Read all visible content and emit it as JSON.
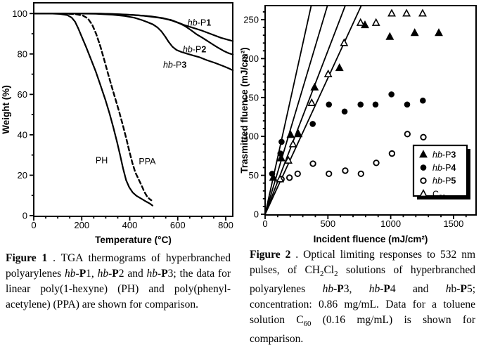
{
  "colors": {
    "ink": "#000000",
    "paper": "#ffffff"
  },
  "figure1": {
    "caption": [
      {
        "t": "Figure 1",
        "b": true
      },
      {
        "t": " . TGA thermograms of hyperbranched polyarylenes "
      },
      {
        "t": "hb",
        "i": true
      },
      {
        "t": "-"
      },
      {
        "t": "P",
        "b": true
      },
      {
        "t": "1, "
      },
      {
        "t": "hb",
        "i": true
      },
      {
        "t": "-"
      },
      {
        "t": "P",
        "b": true
      },
      {
        "t": "2 and "
      },
      {
        "t": "hb",
        "i": true
      },
      {
        "t": "-"
      },
      {
        "t": "P",
        "b": true
      },
      {
        "t": "3; the data for linear poly(1-hexyne) (PH) and poly(phenyl-acetylene) (PPA) are shown for comparison."
      }
    ]
  },
  "figure2": {
    "caption": [
      {
        "t": "Figure 2",
        "b": true
      },
      {
        "t": " . Optical limiting responses to 532 nm pulses, of CH"
      },
      {
        "t": "2",
        "sub": true
      },
      {
        "t": "Cl"
      },
      {
        "t": "2",
        "sub": true
      },
      {
        "t": " solutions of hyperbranched polyarylenes "
      },
      {
        "t": "hb",
        "i": true
      },
      {
        "t": "-"
      },
      {
        "t": "P",
        "b": true
      },
      {
        "t": "3, "
      },
      {
        "t": "hb",
        "i": true
      },
      {
        "t": "-"
      },
      {
        "t": "P",
        "b": true
      },
      {
        "t": "4 and "
      },
      {
        "t": "h",
        "i": true
      },
      {
        "t": "b-"
      },
      {
        "t": "P",
        "b": true
      },
      {
        "t": "5; concentration: 0.86 mg/mL. Data for a toluene solution C"
      },
      {
        "t": "60",
        "sub": true
      },
      {
        "t": " (0.16 mg/mL) is shown for comparison."
      }
    ]
  },
  "chart_data": [
    {
      "type": "line",
      "title": "",
      "xlabel": "Temperature (°C)",
      "ylabel": "Weight (%)",
      "xlim": [
        0,
        830
      ],
      "ylim": [
        0,
        105.3
      ],
      "xticks": [
        0,
        200,
        400,
        600,
        800
      ],
      "yticks": [
        0,
        20,
        40,
        60,
        80,
        100
      ],
      "x_minor_step": 50,
      "y_minor_step": 10,
      "grid": false,
      "series": [
        {
          "name": "hb-P1",
          "style": "solid",
          "label": {
            "parts": [
              {
                "t": "hb",
                "i": true
              },
              {
                "t": "-P"
              },
              {
                "t": "1",
                "b": true
              }
            ],
            "x": 690,
            "y": 95.5
          },
          "points": [
            [
              0,
              100
            ],
            [
              120,
              100
            ],
            [
              240,
              100
            ],
            [
              330,
              99.8
            ],
            [
              400,
              99.4
            ],
            [
              460,
              98.9
            ],
            [
              520,
              98
            ],
            [
              570,
              96.9
            ],
            [
              600,
              95.6
            ],
            [
              625,
              94.4
            ],
            [
              660,
              93.1
            ],
            [
              700,
              91.6
            ],
            [
              740,
              89.8
            ],
            [
              780,
              88
            ],
            [
              810,
              87
            ],
            [
              830,
              86.4
            ]
          ]
        },
        {
          "name": "hb-P2",
          "style": "solid",
          "label": {
            "parts": [
              {
                "t": "hb",
                "i": true
              },
              {
                "t": "-P"
              },
              {
                "t": "2",
                "b": true
              }
            ],
            "x": 670,
            "y": 82.3
          },
          "points": [
            [
              0,
              100
            ],
            [
              150,
              100
            ],
            [
              280,
              100
            ],
            [
              360,
              99.6
            ],
            [
              430,
              99.2
            ],
            [
              490,
              98.6
            ],
            [
              540,
              97.7
            ],
            [
              580,
              96.4
            ],
            [
              610,
              95
            ],
            [
              630,
              93.8
            ],
            [
              655,
              91.8
            ],
            [
              680,
              89.6
            ],
            [
              700,
              88.2
            ],
            [
              722,
              86.6
            ],
            [
              745,
              84.8
            ],
            [
              765,
              83.3
            ],
            [
              790,
              81.6
            ],
            [
              812,
              80.4
            ],
            [
              830,
              79.7
            ]
          ]
        },
        {
          "name": "hb-P3",
          "style": "solid",
          "label": {
            "parts": [
              {
                "t": "hb",
                "i": true
              },
              {
                "t": "-P"
              },
              {
                "t": "3",
                "b": true
              }
            ],
            "x": 588,
            "y": 74.8
          },
          "points": [
            [
              0,
              100
            ],
            [
              150,
              100
            ],
            [
              260,
              99.9
            ],
            [
              330,
              99.4
            ],
            [
              380,
              98.8
            ],
            [
              420,
              97.9
            ],
            [
              450,
              96.8
            ],
            [
              475,
              95.7
            ],
            [
              497,
              94.6
            ],
            [
              515,
              93.2
            ],
            [
              532,
              91.2
            ],
            [
              548,
              88.6
            ],
            [
              562,
              86
            ],
            [
              578,
              83.6
            ],
            [
              595,
              82
            ],
            [
              615,
              81
            ],
            [
              640,
              80.1
            ],
            [
              665,
              79.2
            ],
            [
              690,
              78.4
            ],
            [
              720,
              77
            ],
            [
              755,
              75.6
            ],
            [
              790,
              74
            ],
            [
              812,
              72.9
            ],
            [
              830,
              71.9
            ]
          ]
        },
        {
          "name": "PH",
          "style": "solid",
          "label": {
            "parts": [
              {
                "t": "PH"
              }
            ],
            "x": 283,
            "y": 27.5
          },
          "points": [
            [
              0,
              100
            ],
            [
              70,
              100
            ],
            [
              110,
              99.8
            ],
            [
              140,
              99.2
            ],
            [
              158,
              98
            ],
            [
              172,
              96
            ],
            [
              185,
              92.8
            ],
            [
              200,
              88.5
            ],
            [
              218,
              83.5
            ],
            [
              238,
              77.5
            ],
            [
              258,
              71.5
            ],
            [
              278,
              64.5
            ],
            [
              298,
              57.5
            ],
            [
              316,
              50.5
            ],
            [
              332,
              43.5
            ],
            [
              347,
              36.5
            ],
            [
              360,
              30
            ],
            [
              372,
              23.5
            ],
            [
              385,
              17.5
            ],
            [
              398,
              14
            ],
            [
              412,
              11.5
            ],
            [
              428,
              9.8
            ],
            [
              448,
              8.4
            ],
            [
              468,
              7
            ],
            [
              483,
              6
            ],
            [
              495,
              5
            ]
          ]
        },
        {
          "name": "PPA",
          "style": "dashed",
          "label": {
            "parts": [
              {
                "t": "PPA"
              }
            ],
            "x": 473,
            "y": 27
          },
          "points": [
            [
              0,
              100
            ],
            [
              130,
              100
            ],
            [
              175,
              99.7
            ],
            [
              205,
              99
            ],
            [
              225,
              97.6
            ],
            [
              243,
              94.6
            ],
            [
              260,
              90
            ],
            [
              277,
              84
            ],
            [
              294,
              77
            ],
            [
              310,
              70
            ],
            [
              326,
              63.5
            ],
            [
              342,
              57
            ],
            [
              357,
              51
            ],
            [
              372,
              44.5
            ],
            [
              386,
              38
            ],
            [
              399,
              31.5
            ],
            [
              411,
              26
            ],
            [
              423,
              21.5
            ],
            [
              436,
              18.2
            ],
            [
              449,
              15
            ],
            [
              461,
              11.8
            ],
            [
              473,
              9.3
            ],
            [
              483,
              8.2
            ],
            [
              490,
              7.6
            ]
          ]
        }
      ]
    },
    {
      "type": "scatter",
      "title": "",
      "xlabel": "Incident fluence (mJ/cm²)",
      "ylabel": "Trasmitted fluence (mJ/cm²)",
      "xlim": [
        0,
        1680
      ],
      "ylim": [
        0,
        268
      ],
      "xticks": [
        0,
        500,
        1000,
        1500
      ],
      "yticks": [
        0,
        50,
        100,
        150,
        200,
        250
      ],
      "x_minor_step": 100,
      "y_minor_step": 10,
      "grid": false,
      "reference_line_slopes": [
        0.73,
        0.54,
        0.42,
        0.35
      ],
      "series": [
        {
          "name": "hb-P3",
          "marker": "triangle-filled",
          "points": [
            [
              65,
              47
            ],
            [
              128,
              72
            ],
            [
              203,
              102
            ],
            [
              265,
              103
            ],
            [
              394,
              163
            ],
            [
              592,
              188
            ],
            [
              795,
              243
            ],
            [
              993,
              228
            ],
            [
              1191,
              233
            ],
            [
              1383,
              233
            ]
          ]
        },
        {
          "name": "hb-P4",
          "marker": "circle-filled",
          "points": [
            [
              56,
              52
            ],
            [
              122,
              78
            ],
            [
              131,
              93
            ],
            [
              379,
              116
            ],
            [
              508,
              141
            ],
            [
              633,
              132
            ],
            [
              760,
              141
            ],
            [
              879,
              141
            ],
            [
              1006,
              154
            ],
            [
              1131,
              141
            ],
            [
              1256,
              146
            ]
          ]
        },
        {
          "name": "hb-P5",
          "marker": "circle-open",
          "points": [
            [
              130,
              45
            ],
            [
              194,
              47
            ],
            [
              259,
              52
            ],
            [
              381,
              65
            ],
            [
              508,
              52
            ],
            [
              638,
              56
            ],
            [
              763,
              52
            ],
            [
              885,
              66
            ],
            [
              1010,
              78
            ],
            [
              1133,
              103
            ],
            [
              1260,
              99
            ]
          ]
        },
        {
          "name": "C60",
          "marker": "triangle-open",
          "points": [
            [
              119,
              45
            ],
            [
              185,
              69
            ],
            [
              222,
              90
            ],
            [
              371,
              143
            ],
            [
              502,
              180
            ],
            [
              629,
              220
            ],
            [
              760,
              246
            ],
            [
              883,
              246
            ],
            [
              1008,
              258
            ],
            [
              1126,
              258
            ],
            [
              1254,
              258
            ]
          ]
        }
      ],
      "legend": {
        "position": "lower right",
        "entries": [
          {
            "marker": "triangle-filled",
            "parts": [
              {
                "t": "hb",
                "i": true
              },
              {
                "t": "-P"
              },
              {
                "t": "3",
                "b": true
              }
            ]
          },
          {
            "marker": "circle-filled",
            "parts": [
              {
                "t": "hb",
                "i": true
              },
              {
                "t": "-P"
              },
              {
                "t": "4",
                "b": true
              }
            ]
          },
          {
            "marker": "circle-open",
            "parts": [
              {
                "t": "hb",
                "i": true
              },
              {
                "t": "-P"
              },
              {
                "t": "5",
                "b": true
              }
            ]
          },
          {
            "marker": "triangle-open",
            "parts": [
              {
                "t": "C"
              },
              {
                "t": "60",
                "sub": true
              }
            ]
          }
        ]
      }
    }
  ]
}
